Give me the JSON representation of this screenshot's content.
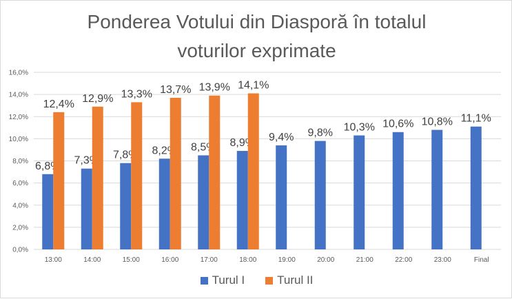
{
  "chart_data": {
    "type": "bar",
    "title_line1": "Ponderea Votului din Diasporă în totalul",
    "title_line2": "voturilor exprimate",
    "categories": [
      "13:00",
      "14:00",
      "15:00",
      "16:00",
      "17:00",
      "18:00",
      "19:00",
      "20:00",
      "21:00",
      "22:00",
      "23:00",
      "Final"
    ],
    "series": [
      {
        "name": "Turul I",
        "color": "#4472C4",
        "values": [
          6.8,
          7.3,
          7.8,
          8.2,
          8.5,
          8.9,
          9.4,
          9.8,
          10.3,
          10.6,
          10.8,
          11.1
        ],
        "labels": [
          "6,8%",
          "7,3%",
          "7,8%",
          "8,2%",
          "8,5%",
          "8,9%",
          "9,4%",
          "9,8%",
          "10,3%",
          "10,6%",
          "10,8%",
          "11,1%"
        ]
      },
      {
        "name": "Turul II",
        "color": "#ED7D31",
        "values": [
          12.4,
          12.9,
          13.3,
          13.7,
          13.9,
          14.1,
          null,
          null,
          null,
          null,
          null,
          null
        ],
        "labels": [
          "12,4%",
          "12,9%",
          "13,3%",
          "13,7%",
          "13,9%",
          "14,1%",
          "",
          "",
          "",
          "",
          "",
          ""
        ]
      }
    ],
    "ylim": [
      0,
      16
    ],
    "yticks": [
      "0,0%",
      "2,0%",
      "4,0%",
      "6,0%",
      "8,0%",
      "10,0%",
      "12,0%",
      "14,0%",
      "16,0%"
    ],
    "xlabel": "",
    "ylabel": "",
    "grid": true,
    "legend_position": "bottom",
    "grid_color": "#d9d9d9"
  }
}
